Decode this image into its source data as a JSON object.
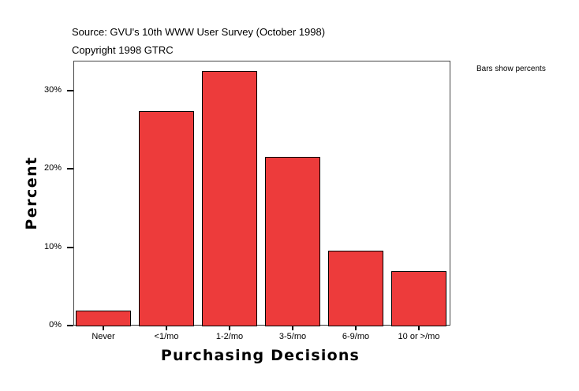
{
  "header": {
    "source": "Source: GVU's 10th WWW User Survey (October 1998)",
    "copyright": "Copyright 1998 GTRC"
  },
  "legend_note": "Bars show percents",
  "chart_data": {
    "type": "bar",
    "title": "",
    "subtitle": "Source: GVU's 10th WWW User Survey (October 1998) / Copyright 1998 GTRC",
    "xlabel": "Purchasing Decisions",
    "ylabel": "Percent",
    "categories": [
      "Never",
      "<1/mo",
      "1-2/mo",
      "3-5/mo",
      "6-9/mo",
      "10 or >/mo"
    ],
    "values": [
      1.9,
      27.4,
      32.5,
      21.6,
      9.6,
      6.9
    ],
    "unit": "%",
    "ylim": [
      0,
      33.8
    ],
    "yticks": [
      "0%",
      "10%",
      "20%",
      "30%"
    ],
    "annotation": "Bars show percents",
    "grid": false,
    "bar_color": "#ed3b3b"
  }
}
